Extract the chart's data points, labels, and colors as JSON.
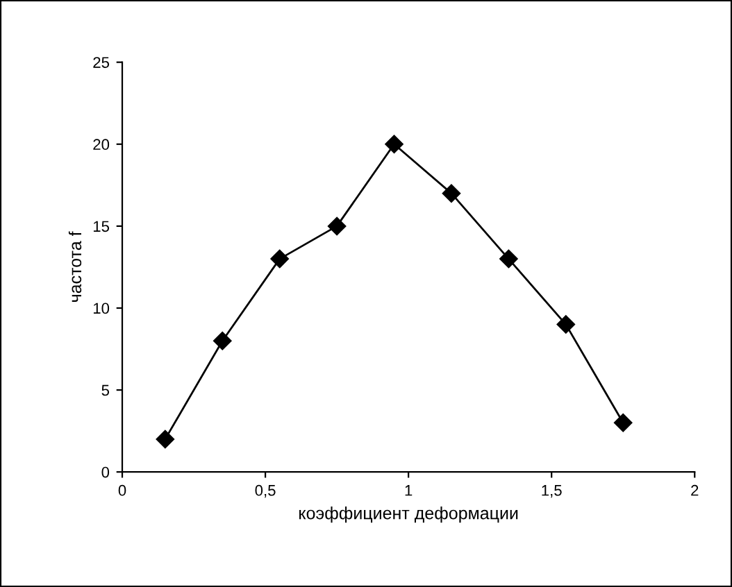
{
  "chart_data": {
    "type": "line",
    "xlabel": "коэффициент деформации",
    "ylabel": "частота f",
    "x": [
      0.15,
      0.35,
      0.55,
      0.75,
      0.95,
      1.15,
      1.35,
      1.55,
      1.75
    ],
    "series": [
      {
        "color": "#000000",
        "values": [
          2,
          8,
          13,
          15,
          20,
          17,
          13,
          9,
          3
        ]
      }
    ],
    "xlim": [
      0,
      2
    ],
    "xticks": [
      0,
      {
        "value": 0.5,
        "label": "0,5"
      },
      1,
      {
        "value": 1.5,
        "label": "1,5"
      },
      2
    ],
    "ylim": [
      0,
      25
    ],
    "yticks": [
      0,
      5,
      10,
      15,
      20,
      25
    ],
    "marker": "diamond",
    "line_style": "solid",
    "grid": false,
    "legend": false
  }
}
